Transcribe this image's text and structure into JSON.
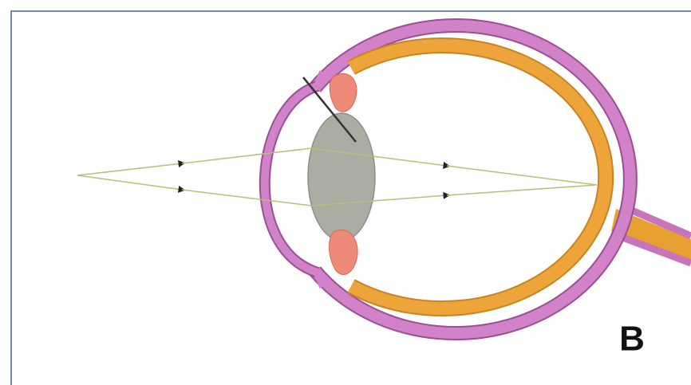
{
  "label": "B"
}
